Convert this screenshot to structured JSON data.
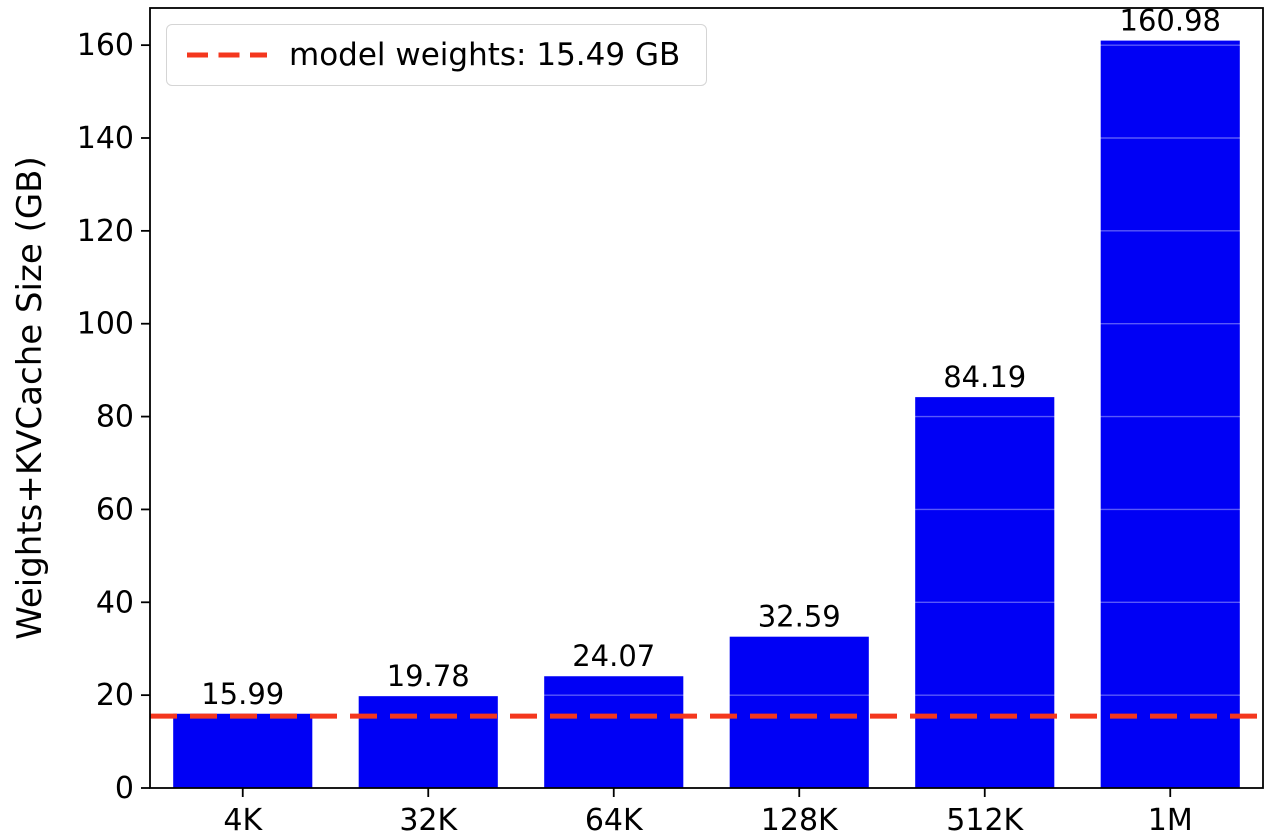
{
  "chart_data": {
    "type": "bar",
    "categories": [
      "4K",
      "32K",
      "64K",
      "128K",
      "512K",
      "1M"
    ],
    "values": [
      15.99,
      19.78,
      24.07,
      32.59,
      84.19,
      160.98
    ],
    "value_labels": [
      "15.99",
      "19.78",
      "24.07",
      "32.59",
      "84.19",
      "160.98"
    ],
    "title": "",
    "xlabel": "",
    "ylabel": "Weights+KVCache Size (GB)",
    "ylim": [
      0,
      168
    ],
    "yticks": [
      0,
      20,
      40,
      60,
      80,
      100,
      120,
      140,
      160
    ],
    "grid": false,
    "bar_color": "#0000f5",
    "reference_line": {
      "value": 15.49,
      "color": "#f4371e",
      "style": "dashed",
      "label": "model weights: 15.49 GB"
    },
    "legend": {
      "position": "upper left",
      "entries": [
        "model weights: 15.49 GB"
      ]
    }
  }
}
